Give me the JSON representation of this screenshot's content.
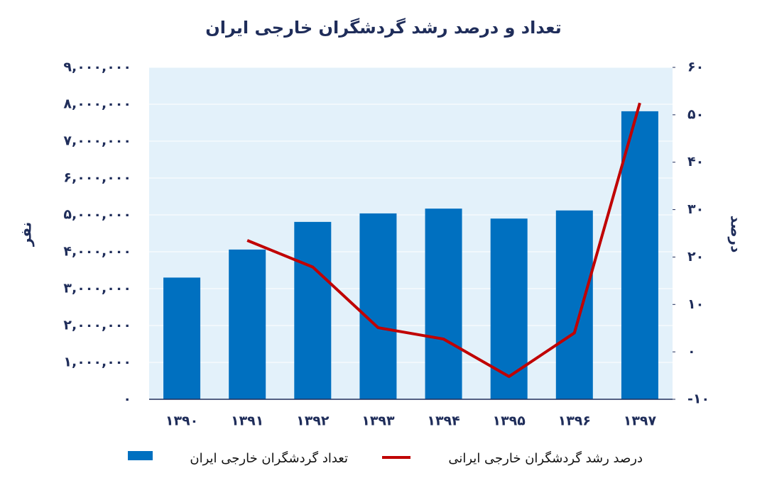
{
  "chart_data": {
    "type": "bar",
    "title": "تعداد و درصد رشد گردشگران خارجی ایران",
    "ylabel": "نفر",
    "y2label": "درصد",
    "categories": [
      "۱۳۹۰",
      "۱۳۹۱",
      "۱۳۹۲",
      "۱۳۹۳",
      "۱۳۹۴",
      "۱۳۹۵",
      "۱۳۹۶",
      "۱۳۹۷"
    ],
    "series": [
      {
        "name": "تعداد گردشگران خارجی ایران",
        "type": "bar",
        "color": "#0070c0",
        "values": [
          3300000,
          4060000,
          4810000,
          5040000,
          5170000,
          4900000,
          5120000,
          7810000
        ]
      },
      {
        "name": "درصد رشد گردشگران خارجی ایرانی",
        "type": "line",
        "color": "#c00000",
        "axis": "y2",
        "values": [
          null,
          23.5,
          17.9,
          5.1,
          2.7,
          -5.2,
          4.0,
          52.5
        ]
      }
    ],
    "ylim": [
      0,
      9000000
    ],
    "yticks": [
      {
        "value": 0,
        "label": "۰"
      },
      {
        "value": 1000000,
        "label": "۱,۰۰۰,۰۰۰"
      },
      {
        "value": 2000000,
        "label": "۲,۰۰۰,۰۰۰"
      },
      {
        "value": 3000000,
        "label": "۳,۰۰۰,۰۰۰"
      },
      {
        "value": 4000000,
        "label": "۴,۰۰۰,۰۰۰"
      },
      {
        "value": 5000000,
        "label": "۵,۰۰۰,۰۰۰"
      },
      {
        "value": 6000000,
        "label": "۶,۰۰۰,۰۰۰"
      },
      {
        "value": 7000000,
        "label": "۷,۰۰۰,۰۰۰"
      },
      {
        "value": 8000000,
        "label": "۸,۰۰۰,۰۰۰"
      },
      {
        "value": 9000000,
        "label": "۹,۰۰۰,۰۰۰"
      }
    ],
    "y2lim": [
      -10,
      60
    ],
    "y2ticks": [
      {
        "value": -10,
        "label": "-۱۰"
      },
      {
        "value": 0,
        "label": "۰"
      },
      {
        "value": 10,
        "label": "۱۰"
      },
      {
        "value": 20,
        "label": "۲۰"
      },
      {
        "value": 30,
        "label": "۳۰"
      },
      {
        "value": 40,
        "label": "۴۰"
      },
      {
        "value": 50,
        "label": "۵۰"
      },
      {
        "value": 60,
        "label": "۶۰"
      }
    ],
    "plot_background": "#e3f1fa"
  }
}
